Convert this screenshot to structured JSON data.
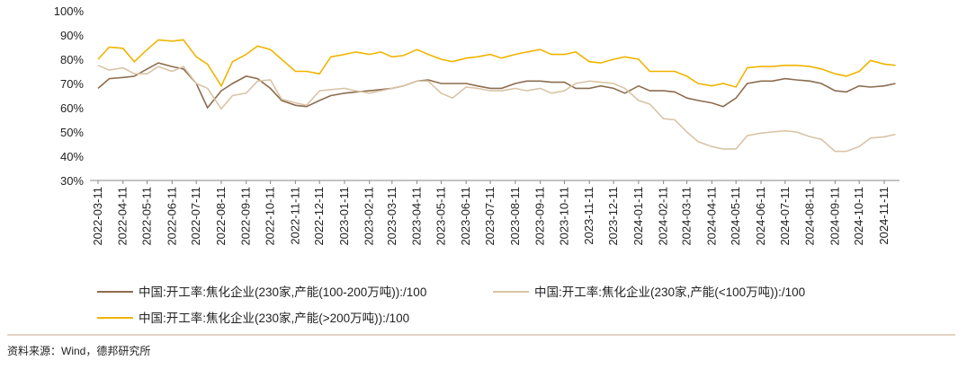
{
  "chart_data": {
    "type": "line",
    "x": [
      "2022-03-11",
      "2022-03-25",
      "2022-04-11",
      "2022-04-25",
      "2022-05-11",
      "2022-05-25",
      "2022-06-11",
      "2022-06-25",
      "2022-07-11",
      "2022-07-25",
      "2022-08-11",
      "2022-08-25",
      "2022-09-11",
      "2022-09-25",
      "2022-10-11",
      "2022-10-25",
      "2022-11-11",
      "2022-11-25",
      "2022-12-11",
      "2022-12-25",
      "2023-01-11",
      "2023-01-25",
      "2023-02-11",
      "2023-02-25",
      "2023-03-11",
      "2023-03-25",
      "2023-04-11",
      "2023-04-25",
      "2023-05-11",
      "2023-05-25",
      "2023-06-11",
      "2023-06-25",
      "2023-07-11",
      "2023-07-25",
      "2023-08-11",
      "2023-08-25",
      "2023-09-11",
      "2023-09-25",
      "2023-10-11",
      "2023-10-25",
      "2023-11-11",
      "2023-11-25",
      "2023-12-11",
      "2023-12-25",
      "2024-01-11",
      "2024-01-25",
      "2024-02-11",
      "2024-02-25",
      "2024-03-11",
      "2024-03-25",
      "2024-04-11",
      "2024-04-25",
      "2024-05-11",
      "2024-05-25",
      "2024-06-11",
      "2024-06-25",
      "2024-07-11",
      "2024-07-25",
      "2024-08-11",
      "2024-08-25",
      "2024-09-11",
      "2024-09-25",
      "2024-10-11",
      "2024-10-25",
      "2024-11-11",
      "2024-11-25"
    ],
    "series": [
      {
        "name": "中国:开工率:焦化企业(230家,产能(100-200万吨)):/100",
        "color": "#8c6c4e",
        "values": [
          68,
          72,
          72.5,
          73,
          76,
          78.5,
          77,
          76,
          70,
          60,
          67,
          70,
          73,
          72,
          68,
          63,
          61,
          60.5,
          63,
          65,
          66,
          66.5,
          67,
          67.5,
          68,
          69,
          71,
          71.5,
          70,
          70,
          70,
          69,
          68,
          68,
          70,
          71,
          71,
          70.5,
          70.5,
          68,
          68,
          69,
          68,
          66,
          69,
          67,
          67,
          66.5,
          64,
          63,
          62,
          60.5,
          64,
          70,
          71,
          71,
          72,
          71.5,
          71,
          70,
          67,
          66.5,
          69,
          68.5,
          69,
          70
        ]
      },
      {
        "name": "中国:开工率:焦化企业(230家,产能(<100万吨)):/100",
        "color": "#d9c4a6",
        "values": [
          77.5,
          75.5,
          76.5,
          74,
          74,
          77,
          75,
          77,
          70,
          68,
          59.5,
          65,
          66,
          71,
          71.5,
          63.5,
          62,
          61,
          67,
          67.5,
          68,
          67,
          66,
          67,
          68,
          69,
          71,
          71,
          66,
          64,
          68.5,
          68,
          67,
          67,
          68,
          67,
          68,
          66,
          67,
          70,
          71,
          70.5,
          70,
          68,
          63,
          61.5,
          55.5,
          55,
          50,
          46,
          44,
          43,
          43,
          48.5,
          49.5,
          50,
          50.5,
          50,
          48,
          47,
          42,
          42,
          44,
          47.5,
          48,
          49
        ]
      },
      {
        "name": "中国:开工率:焦化企业(230家,产能(>200万吨)):/100",
        "color": "#f0b400",
        "values": [
          80,
          85,
          84.5,
          79,
          84,
          88,
          87.5,
          88,
          81,
          78,
          69,
          79,
          82,
          85.5,
          84,
          80,
          75,
          75,
          74,
          81,
          82,
          83,
          82,
          83,
          81,
          81.5,
          84,
          82,
          80,
          79,
          80.5,
          81,
          82,
          80.5,
          82,
          83,
          84,
          82,
          82,
          83,
          79,
          78.5,
          80,
          81,
          80,
          75,
          75,
          75,
          73,
          70,
          69,
          70,
          68.5,
          76.5,
          77,
          77,
          77.5,
          77.5,
          77,
          76,
          74,
          73,
          75,
          79.5,
          78,
          77.5
        ]
      }
    ],
    "xlim": [
      "2022-03-01",
      "2024-11-30"
    ],
    "xticks": [
      "2022-03-11",
      "2022-04-11",
      "2022-05-11",
      "2022-06-11",
      "2022-07-11",
      "2022-08-11",
      "2022-09-11",
      "2022-10-11",
      "2022-11-11",
      "2022-12-11",
      "2023-01-11",
      "2023-02-11",
      "2023-03-11",
      "2023-04-11",
      "2023-05-11",
      "2023-06-11",
      "2023-07-11",
      "2023-08-11",
      "2023-09-11",
      "2023-10-11",
      "2023-11-11",
      "2023-12-11",
      "2024-01-11",
      "2024-02-11",
      "2024-03-11",
      "2024-04-11",
      "2024-05-11",
      "2024-06-11",
      "2024-07-11",
      "2024-08-11",
      "2024-09-11",
      "2024-10-11",
      "2024-11-11"
    ],
    "ylim": [
      30,
      100
    ],
    "yticks": [
      {
        "value": 30,
        "label": "30%"
      },
      {
        "value": 40,
        "label": "40%"
      },
      {
        "value": 50,
        "label": "50%"
      },
      {
        "value": 60,
        "label": "60%"
      },
      {
        "value": 70,
        "label": "70%"
      },
      {
        "value": 80,
        "label": "80%"
      },
      {
        "value": 90,
        "label": "90%"
      },
      {
        "value": 100,
        "label": "100%"
      }
    ],
    "source": "资料来源：Wind，德邦研究所"
  }
}
